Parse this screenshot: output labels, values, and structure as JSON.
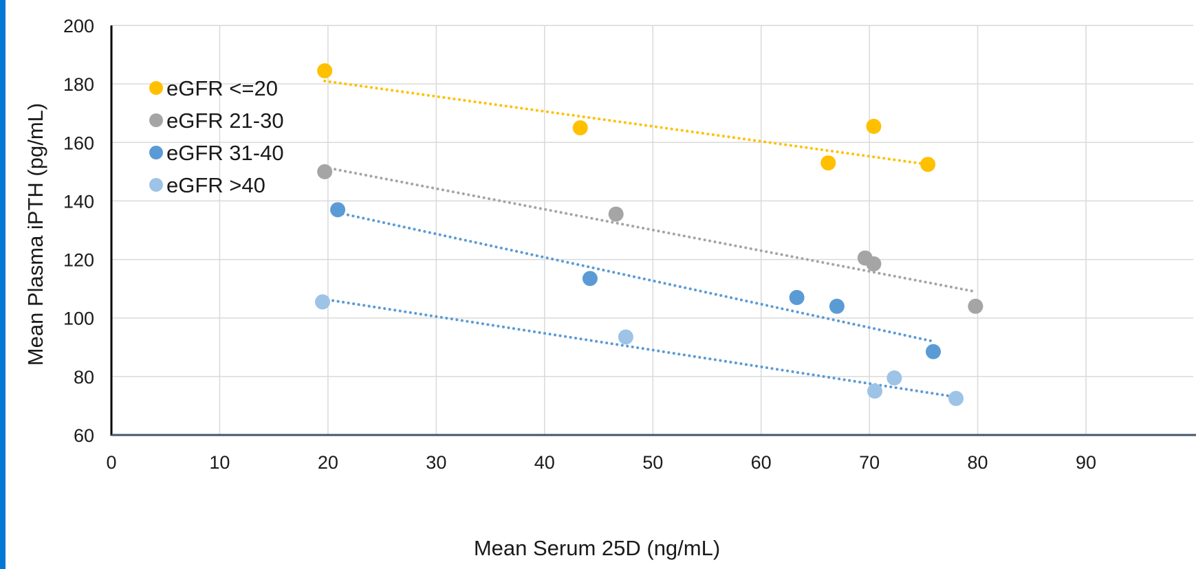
{
  "chart_data": {
    "type": "scatter",
    "title": "",
    "xlabel": "Mean Serum 25D (ng/mL)",
    "ylabel": "Mean Plasma iPTH (pg/mL)",
    "xlim": [
      0,
      90
    ],
    "ylim": [
      60,
      200
    ],
    "x_ticks": [
      "0",
      "10",
      "20",
      "30",
      "40",
      "50",
      "60",
      "70",
      "80",
      "90"
    ],
    "y_ticks": [
      "60",
      "80",
      "100",
      "120",
      "140",
      "160",
      "180",
      "200"
    ],
    "grid": true,
    "legend_position": "top-left",
    "trendlines": "linear, dotted",
    "series": [
      {
        "name": "eGFR <=20",
        "color": "#ffc000",
        "points": [
          [
            19.7,
            184.5
          ],
          [
            43.3,
            165
          ],
          [
            66.2,
            153
          ],
          [
            70.4,
            165.5
          ],
          [
            75.4,
            152.5
          ]
        ],
        "trend": [
          [
            19.7,
            181
          ],
          [
            75.4,
            152.5
          ]
        ]
      },
      {
        "name": "eGFR 21-30",
        "color": "#a5a5a5",
        "points": [
          [
            19.7,
            150
          ],
          [
            46.6,
            135.5
          ],
          [
            69.6,
            120.5
          ],
          [
            70.4,
            118.5
          ],
          [
            79.8,
            104
          ]
        ],
        "trend": [
          [
            19.7,
            151.5
          ],
          [
            79.8,
            109
          ]
        ]
      },
      {
        "name": "eGFR 31-40",
        "color": "#5b9bd5",
        "points": [
          [
            20.9,
            137
          ],
          [
            44.2,
            113.5
          ],
          [
            63.3,
            107
          ],
          [
            67.0,
            104
          ],
          [
            75.9,
            88.5
          ]
        ],
        "trend": [
          [
            20.9,
            136
          ],
          [
            75.9,
            92
          ]
        ]
      },
      {
        "name": "eGFR >40",
        "color": "#9dc3e6",
        "trend_color": "#5b9bd5",
        "points": [
          [
            19.5,
            105.5
          ],
          [
            47.5,
            93.5
          ],
          [
            70.5,
            75
          ],
          [
            72.3,
            79.5
          ],
          [
            78.0,
            72.5
          ]
        ],
        "trend": [
          [
            19.5,
            106.5
          ],
          [
            78.0,
            73
          ]
        ]
      }
    ]
  },
  "colors": {
    "accent_bar": "#0078d4",
    "grid": "#d9d9d9",
    "axis": "#44546a"
  }
}
